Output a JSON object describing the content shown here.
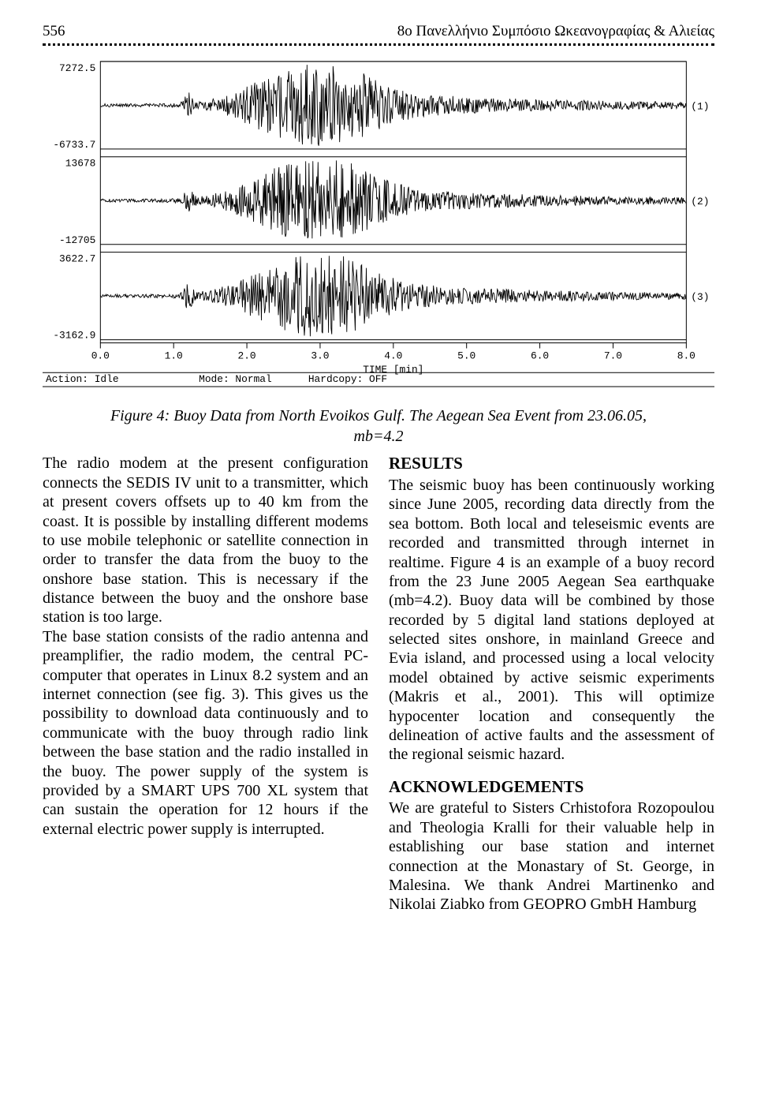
{
  "header": {
    "page_number": "556",
    "running_title": "8o Πανελλήνιο Συμπόσιο Ωκεανογραφίας & Αλιείας"
  },
  "figure": {
    "type": "seismogram",
    "background_color": "#ffffff",
    "stroke_color": "#000000",
    "label_font_family": "Courier",
    "label_fontsize": 13,
    "x_axis": {
      "label": "TIME [min]",
      "ticks": [
        "0.0",
        "1.0",
        "2.0",
        "3.0",
        "4.0",
        "5.0",
        "6.0",
        "7.0",
        "8.0"
      ]
    },
    "channels": [
      {
        "id": "(1)",
        "y_top": "7272.5",
        "y_bot": "-6733.7"
      },
      {
        "id": "(2)",
        "y_top": "13678",
        "y_bot": "-12705"
      },
      {
        "id": "(3)",
        "y_top": "3622.7",
        "y_bot": "-3162.9"
      }
    ],
    "burst_center_min": 2.8,
    "burst_width_min": 1.4,
    "status_bar": {
      "action": "Action: Idle",
      "mode": "Mode: Normal",
      "hardcopy": "Hardcopy: OFF"
    },
    "caption": "Figure 4:  Buoy Data from North Evoikos Gulf. The Aegean Sea Event from 23.06.05,",
    "caption_sub": "mb=4.2"
  },
  "body": {
    "left_para1": "The radio modem at the present configuration connects the SEDIS IV unit to a transmitter, which at present covers offsets up to 40 km from the coast. It is possible by installing different modems to use mobile telephonic or satellite connection in order to transfer the data from the buoy to the onshore base station. This is necessary if the distance between the buoy and the onshore base station is too large.",
    "left_para2": "The base station consists of the radio antenna and preamplifier, the radio modem, the central PC-computer that operates in Linux 8.2 system and an internet connection (see fig. 3). This gives us the possibility to download data continuously and to communicate with the buoy through radio link between the base station and the radio installed in the buoy. The power supply of the system is provided by a SMART UPS 700 XL system that can sustain the operation for 12 hours if the external electric power supply is interrupted.",
    "results_head": "RESULTS",
    "results_para": "The seismic buoy has been continuously working since June 2005, recording data directly from the sea bottom. Both local and teleseismic events are recorded and transmitted through internet in realtime. Figure 4 is an example of a buoy record from the 23 June 2005 Aegean Sea earthquake (mb=4.2).  Buoy data will be combined by those recorded by 5 digital land stations deployed at selected sites onshore, in mainland Greece and Evia island, and processed using a local velocity model obtained by active seismic experiments (Makris et al., 2001). This will optimize hypocenter location and consequently the delineation of active faults and the assessment of the regional seismic hazard.",
    "ack_head": "ACKNOWLEDGEMENTS",
    "ack_para": "We are grateful to Sisters Crhistofora Rozopoulou and Theologia Kralli for their valuable help in establishing our base station and internet connection at the Monastary of St. George, in Malesina. We thank Andrei Martinenko and Nikolai Ziabko from GEOPRO GmbH Hamburg"
  }
}
